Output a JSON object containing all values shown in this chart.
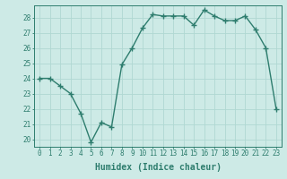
{
  "x": [
    0,
    1,
    2,
    3,
    4,
    5,
    6,
    7,
    8,
    9,
    10,
    11,
    12,
    13,
    14,
    15,
    16,
    17,
    18,
    19,
    20,
    21,
    22,
    23
  ],
  "y": [
    24,
    24,
    23.5,
    23,
    21.7,
    19.8,
    21.1,
    20.8,
    24.9,
    26.0,
    27.3,
    28.2,
    28.1,
    28.1,
    28.1,
    27.5,
    28.5,
    28.1,
    27.8,
    27.8,
    28.1,
    27.2,
    26.0,
    22.0
  ],
  "line_color": "#2e7d6e",
  "bg_color": "#cdeae6",
  "grid_color": "#b0d8d2",
  "xlabel": "Humidex (Indice chaleur)",
  "ylim": [
    19.5,
    28.8
  ],
  "xlim": [
    -0.5,
    23.5
  ],
  "yticks": [
    20,
    21,
    22,
    23,
    24,
    25,
    26,
    27,
    28
  ],
  "xticks": [
    0,
    1,
    2,
    3,
    4,
    5,
    6,
    7,
    8,
    9,
    10,
    11,
    12,
    13,
    14,
    15,
    16,
    17,
    18,
    19,
    20,
    21,
    22,
    23
  ],
  "xtick_labels": [
    "0",
    "1",
    "2",
    "3",
    "4",
    "5",
    "6",
    "7",
    "8",
    "9",
    "10",
    "11",
    "12",
    "13",
    "14",
    "15",
    "16",
    "17",
    "18",
    "19",
    "20",
    "21",
    "22",
    "23"
  ],
  "marker": "+",
  "marker_size": 4,
  "line_width": 1.0,
  "xlabel_fontsize": 7,
  "tick_fontsize": 5.5
}
